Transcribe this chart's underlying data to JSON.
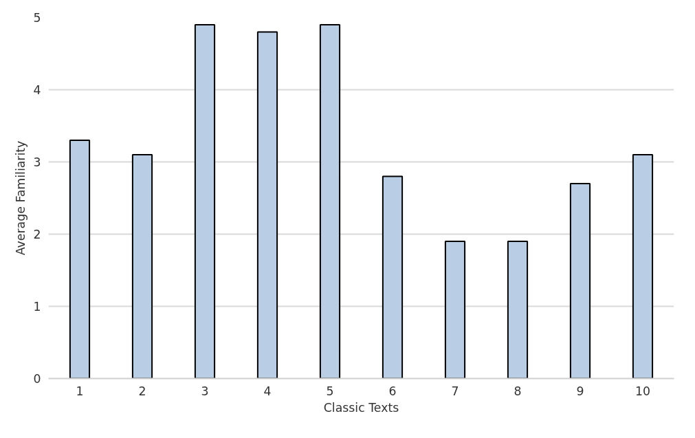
{
  "chart_data": {
    "type": "bar",
    "xlabel": "Classic Texts",
    "ylabel": "Average Familiarity",
    "categories": [
      "1",
      "2",
      "3",
      "4",
      "5",
      "6",
      "7",
      "8",
      "9",
      "10"
    ],
    "values": [
      3.3,
      3.1,
      4.9,
      4.8,
      4.9,
      2.8,
      1.9,
      1.9,
      2.7,
      3.1
    ],
    "color": "#b9cde5",
    "ylim": [
      0,
      5
    ],
    "yticks": [
      0,
      1,
      2,
      3,
      4,
      5
    ],
    "grid": "y"
  }
}
